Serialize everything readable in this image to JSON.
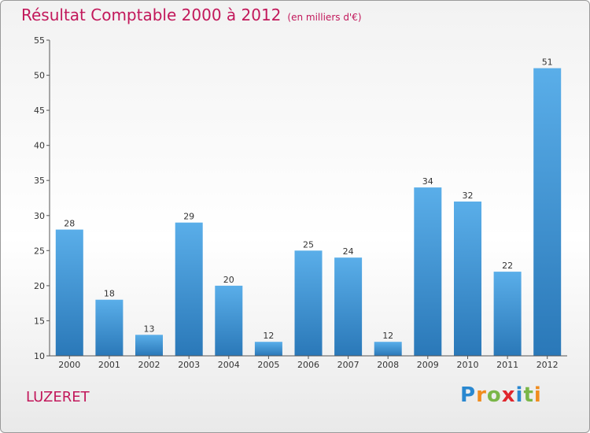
{
  "chart_data": {
    "type": "bar",
    "title": "Résultat Comptable 2000 à 2012",
    "subtitle": "(en milliers d'€)",
    "categories": [
      "2000",
      "2001",
      "2002",
      "2003",
      "2004",
      "2005",
      "2006",
      "2007",
      "2008",
      "2009",
      "2010",
      "2011",
      "2012"
    ],
    "values": [
      28,
      18,
      13,
      29,
      20,
      12,
      25,
      24,
      12,
      34,
      32,
      22,
      51
    ],
    "ylim": [
      10,
      55
    ],
    "yticks": [
      10,
      15,
      20,
      25,
      30,
      35,
      40,
      45,
      50,
      55
    ],
    "xlabel": "",
    "ylabel": "",
    "grid": false,
    "bar_color_top": "#5aaee9",
    "bar_color_bottom": "#2a78b8"
  },
  "footer": {
    "town": "LUZERET",
    "logo": [
      "P",
      "r",
      "o",
      "x",
      "i",
      "t",
      "i"
    ],
    "logo_colors": [
      "#2a88d0",
      "#f08c1e",
      "#7ab648",
      "#e0262d",
      "#2a88d0",
      "#7ab648",
      "#f08c1e"
    ]
  },
  "colors": {
    "title": "#c2185b",
    "axis": "#555555"
  }
}
